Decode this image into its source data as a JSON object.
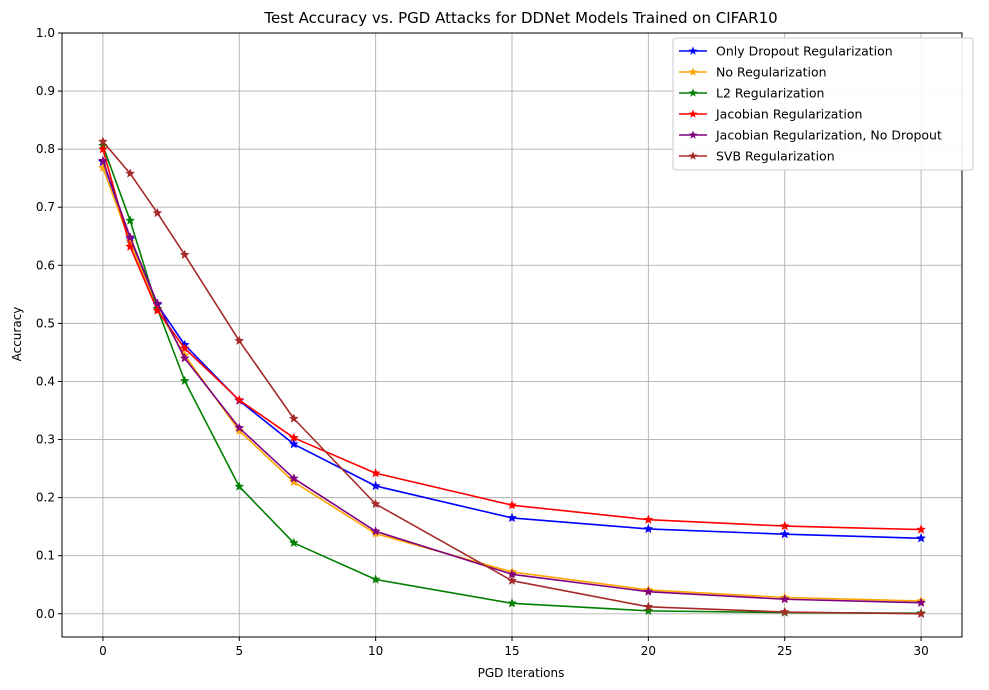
{
  "chart_data": {
    "type": "line",
    "title": "Test Accuracy vs. PGD Attacks for DDNet Models Trained on CIFAR10",
    "xlabel": "PGD Iterations",
    "ylabel": "Accuracy",
    "xlim": [
      -1.5,
      31.5
    ],
    "ylim": [
      -0.04,
      1.0
    ],
    "xticks": [
      0,
      5,
      10,
      15,
      20,
      25,
      30
    ],
    "yticks": [
      0.0,
      0.1,
      0.2,
      0.3,
      0.4,
      0.5,
      0.6,
      0.7,
      0.8,
      0.9,
      1.0
    ],
    "ytick_labels": [
      "0.0",
      "0.1",
      "0.2",
      "0.3",
      "0.4",
      "0.5",
      "0.6",
      "0.7",
      "0.8",
      "0.9",
      "1.0"
    ],
    "grid": true,
    "legend_position": "top-right",
    "marker": "star",
    "x": [
      0,
      1,
      2,
      3,
      5,
      7,
      10,
      15,
      20,
      25,
      30
    ],
    "series": [
      {
        "name": "Only Dropout Regularization",
        "color": "#0000ff",
        "values": [
          0.778,
          0.645,
          0.532,
          0.463,
          0.367,
          0.292,
          0.22,
          0.165,
          0.146,
          0.137,
          0.13
        ]
      },
      {
        "name": "No Regularization",
        "color": "#ffa500",
        "values": [
          0.768,
          0.64,
          0.525,
          0.445,
          0.315,
          0.227,
          0.138,
          0.072,
          0.041,
          0.028,
          0.022
        ]
      },
      {
        "name": "L2 Regularization",
        "color": "#008000",
        "values": [
          0.806,
          0.677,
          0.525,
          0.401,
          0.219,
          0.122,
          0.059,
          0.018,
          0.005,
          0.002,
          0.001
        ]
      },
      {
        "name": "Jacobian Regularization",
        "color": "#ff0000",
        "values": [
          0.8,
          0.632,
          0.522,
          0.457,
          0.368,
          0.303,
          0.242,
          0.187,
          0.162,
          0.151,
          0.145
        ]
      },
      {
        "name": "Jacobian Regularization, No Dropout",
        "color": "#800080",
        "values": [
          0.78,
          0.648,
          0.534,
          0.44,
          0.32,
          0.233,
          0.142,
          0.068,
          0.038,
          0.025,
          0.019
        ]
      },
      {
        "name": "SVB Regularization",
        "color": "#a52a2a",
        "values": [
          0.813,
          0.758,
          0.69,
          0.618,
          0.47,
          0.336,
          0.189,
          0.057,
          0.012,
          0.003,
          0.0
        ]
      }
    ]
  }
}
